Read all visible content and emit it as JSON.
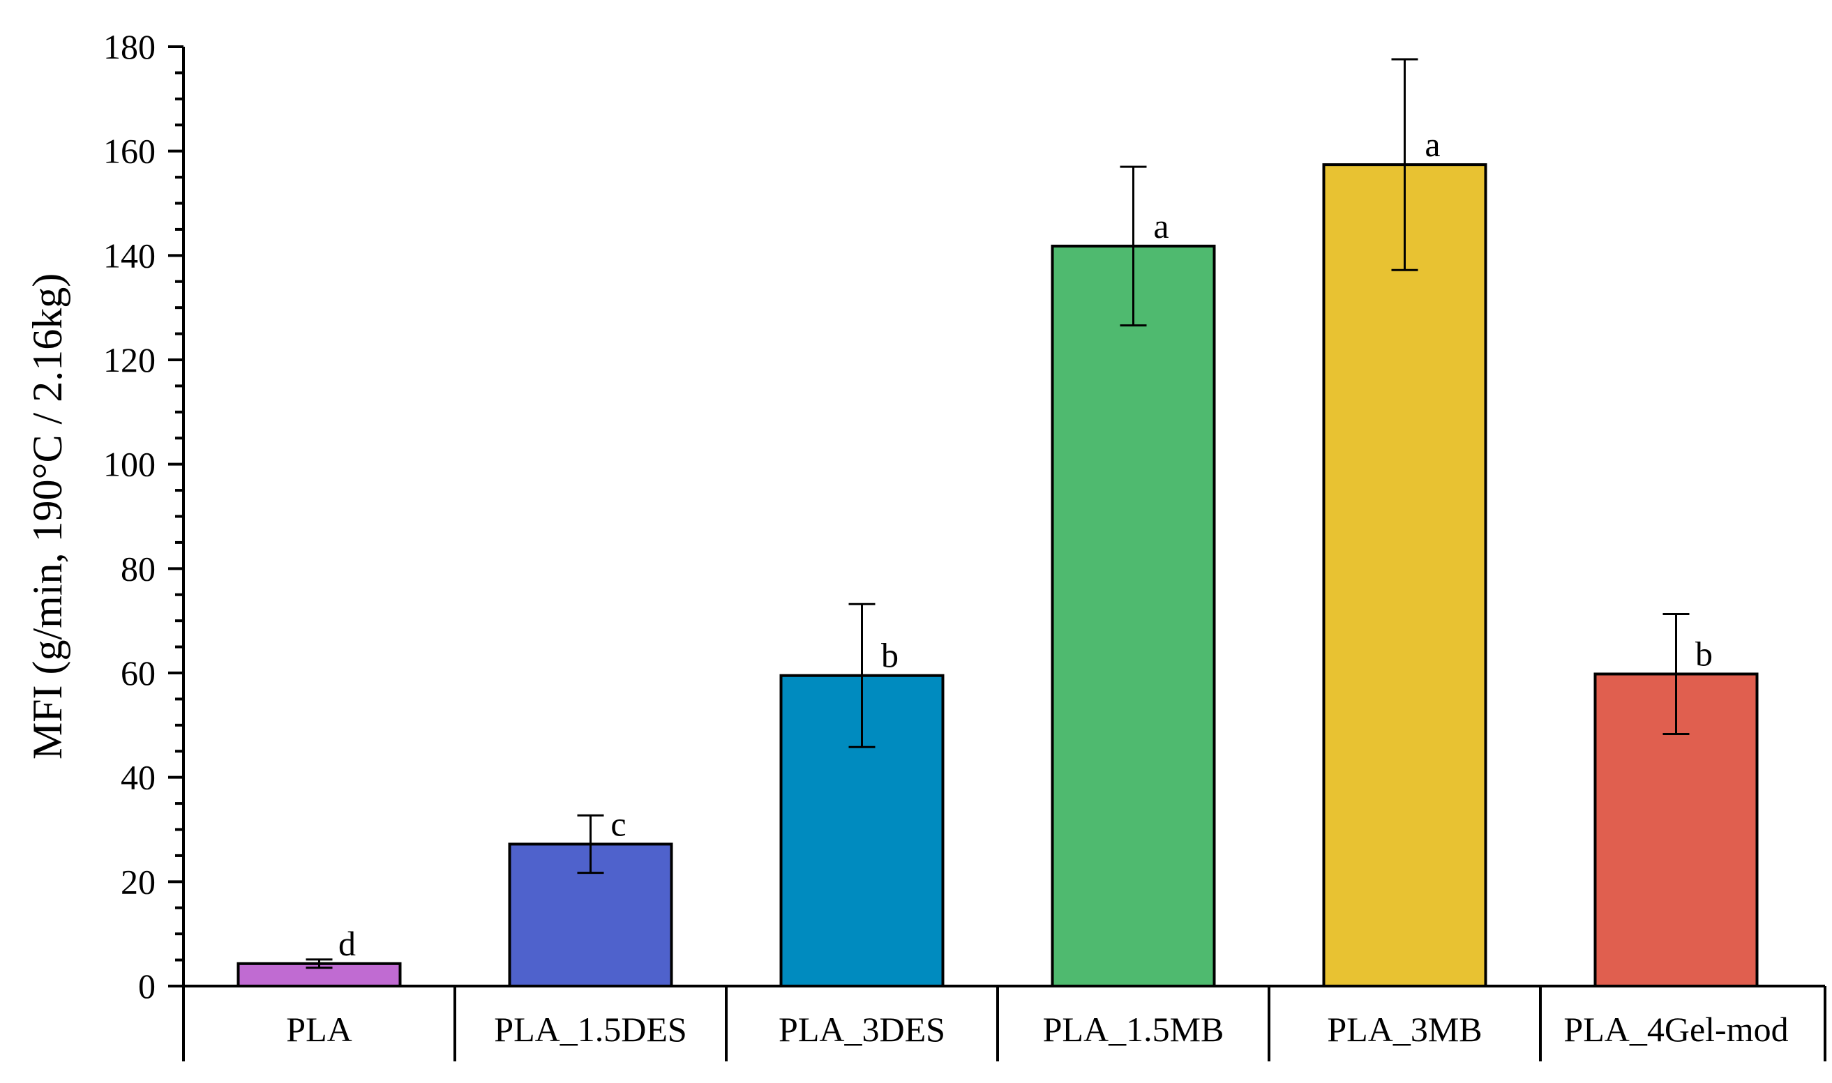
{
  "chart_data": {
    "type": "bar",
    "title": "",
    "xlabel": "",
    "ylabel": "MFI (g/min, 190°C / 2.16kg)",
    "ylim": [
      0,
      180
    ],
    "yticks": [
      0,
      20,
      40,
      60,
      80,
      100,
      120,
      140,
      160,
      180
    ],
    "yticks_labels": [
      "0",
      "20",
      "40",
      "60",
      "80",
      "100",
      "120",
      "140",
      "160",
      "180"
    ],
    "y_minor_step": 5,
    "grid": false,
    "legend": "none",
    "categories": [
      "PLA",
      "PLA_1.5DES",
      "PLA_3DES",
      "PLA_1.5MB",
      "PLA_3MB",
      "PLA_4Gel-mod"
    ],
    "values": [
      4.3,
      27.2,
      59.5,
      141.8,
      157.4,
      59.8
    ],
    "errors": [
      0.8,
      5.5,
      13.7,
      15.2,
      20.2,
      11.5
    ],
    "significance": [
      "d",
      "c",
      "b",
      "a",
      "a",
      "b"
    ],
    "colors": [
      "#c06bd2",
      "#4f62cc",
      "#008bbf",
      "#4fba6f",
      "#e8c232",
      "#e05f4f"
    ]
  }
}
